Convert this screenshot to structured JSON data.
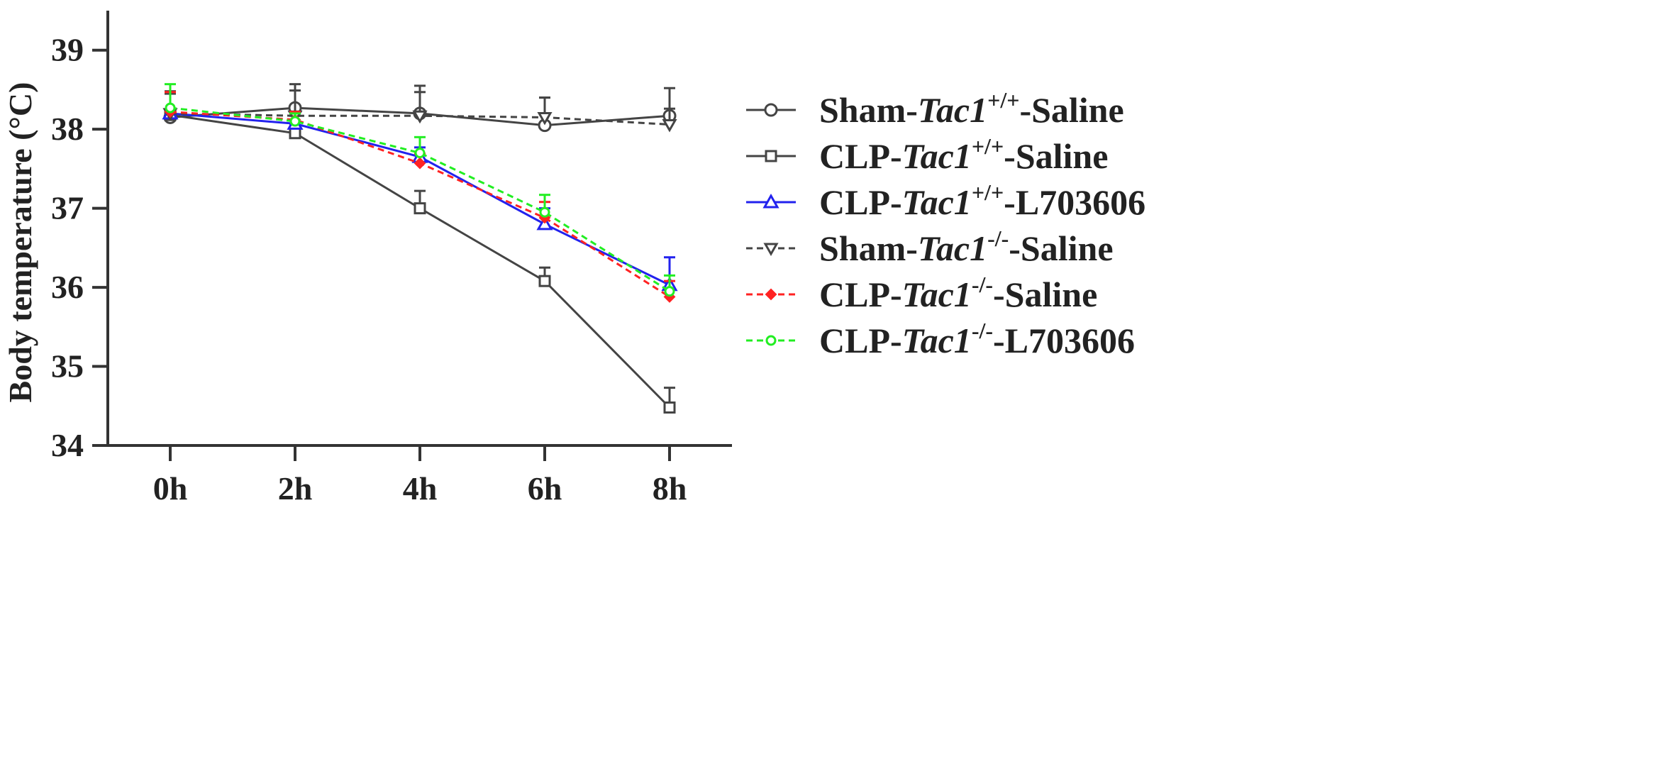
{
  "chart_data": {
    "type": "line",
    "ylabel": "Body temperature (°C)",
    "xlabel": "",
    "categories": [
      "0h",
      "2h",
      "4h",
      "6h",
      "8h"
    ],
    "ylim": [
      34,
      39.5
    ],
    "yticks": [
      "34",
      "35",
      "36",
      "37",
      "38",
      "39"
    ],
    "grid": false,
    "legend_position": "right",
    "series": [
      {
        "name": "Sham-Tac1+/+-Saline",
        "legend": {
          "prefix": "Sham-",
          "gene": "Tac1",
          "sup": "+/+",
          "suffix": "-Saline"
        },
        "values": [
          38.15,
          38.27,
          38.2,
          38.05,
          38.17
        ],
        "errors": [
          0.3,
          0.3,
          0.35,
          0.35,
          0.35
        ],
        "color": "#444444",
        "dashed": false,
        "marker": "circle"
      },
      {
        "name": "CLP-Tac1+/+-Saline",
        "legend": {
          "prefix": "CLP-",
          "gene": "Tac1",
          "sup": "+/+",
          "suffix": "-Saline"
        },
        "values": [
          38.18,
          37.95,
          37.0,
          36.08,
          34.48
        ],
        "errors": [
          0.3,
          0.1,
          0.22,
          0.17,
          0.25
        ],
        "color": "#444444",
        "dashed": false,
        "marker": "square"
      },
      {
        "name": "CLP-Tac1+/+-L703606",
        "legend": {
          "prefix": "CLP-",
          "gene": "Tac1",
          "sup": "+/+",
          "suffix": "-L703606"
        },
        "values": [
          38.2,
          38.07,
          37.65,
          36.8,
          36.03
        ],
        "errors": [
          0.25,
          0.1,
          0.12,
          0.2,
          0.35
        ],
        "color": "#2222ee",
        "dashed": false,
        "marker": "triangle-up"
      },
      {
        "name": "Sham-Tac1-/--Saline",
        "legend": {
          "prefix": "Sham-",
          "gene": "Tac1",
          "sup": "-/-",
          "suffix": "-Saline"
        },
        "values": [
          38.2,
          38.17,
          38.17,
          38.15,
          38.06
        ],
        "errors": [
          0.25,
          0.32,
          0.3,
          0.25,
          0.2
        ],
        "color": "#444444",
        "dashed": true,
        "marker": "triangle-down"
      },
      {
        "name": "CLP-Tac1-/--Saline",
        "legend": {
          "prefix": "CLP-",
          "gene": "Tac1",
          "sup": "-/-",
          "suffix": "-Saline"
        },
        "values": [
          38.22,
          38.12,
          37.57,
          36.88,
          35.88
        ],
        "errors": [
          0.25,
          0.1,
          0.12,
          0.2,
          0.2
        ],
        "color": "#ff2222",
        "dashed": true,
        "marker": "diamond"
      },
      {
        "name": "CLP-Tac1-/--L703606",
        "legend": {
          "prefix": "CLP-",
          "gene": "Tac1",
          "sup": "-/-",
          "suffix": "-L703606"
        },
        "values": [
          38.27,
          38.1,
          37.7,
          36.95,
          35.95
        ],
        "errors": [
          0.3,
          0.1,
          0.2,
          0.22,
          0.2
        ],
        "color": "#22ee22",
        "dashed": true,
        "marker": "circle-small"
      }
    ]
  }
}
